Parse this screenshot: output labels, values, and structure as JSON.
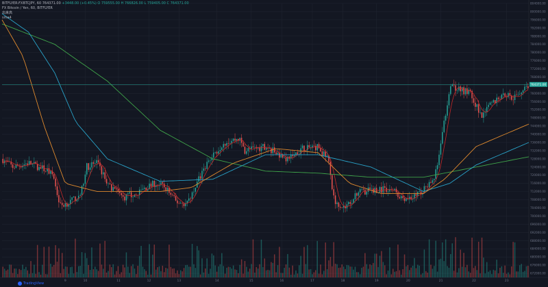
{
  "header": {
    "symbol_line": "BITFLYER:FXBTCJPY, 60",
    "price": "764371.00",
    "change": "+3448.00 (+0.45%)",
    "ohlc": "O 759555.00  H 766826.00  L 759405.00  C 764371.00",
    "subtitle": "FX Bitcoin / Yen, 60, BITFLYER",
    "indicator_1": "出来高",
    "indicator_2": "sma4"
  },
  "logo": {
    "text": "TradingView"
  },
  "price_label": "764371.00",
  "colors": {
    "background": "#131722",
    "grid": "#1f2430",
    "up": "#26a69a",
    "down": "#ef5350",
    "ma_fast": "#c62828",
    "ma_mid": "#e08a2e",
    "ma_slow": "#29a3c9",
    "ma_long": "#3fa44a",
    "price_line": "#26a69a",
    "axis_text": "#6c7284"
  },
  "chart_data": {
    "type": "candlestick",
    "ylim": [
      670000,
      804000
    ],
    "y_ticks": [
      "804000.00",
      "800000.00",
      "796000.00",
      "792000.00",
      "788000.00",
      "784000.00",
      "780000.00",
      "776000.00",
      "772000.00",
      "768000.00",
      "764000.00",
      "760000.00",
      "756000.00",
      "752000.00",
      "748000.00",
      "744000.00",
      "740000.00",
      "736000.00",
      "732000.00",
      "728000.00",
      "724000.00",
      "720000.00",
      "716000.00",
      "712000.00",
      "708000.00",
      "704000.00",
      "700000.00",
      "696000.00",
      "692000.00",
      "688000.00",
      "684000.00",
      "680000.00",
      "676000.00",
      "672000.00"
    ],
    "x_ticks": [
      {
        "label": "9",
        "pos": 0.12
      },
      {
        "label": "10",
        "pos": 0.158
      },
      {
        "label": "11",
        "pos": 0.221
      },
      {
        "label": "12",
        "pos": 0.279
      },
      {
        "label": "13",
        "pos": 0.336
      },
      {
        "label": "14",
        "pos": 0.408
      },
      {
        "label": "15",
        "pos": 0.473
      },
      {
        "label": "16",
        "pos": 0.531
      },
      {
        "label": "17",
        "pos": 0.589
      },
      {
        "label": "18",
        "pos": 0.647
      },
      {
        "label": "19",
        "pos": 0.711
      },
      {
        "label": "20",
        "pos": 0.771
      },
      {
        "label": "21",
        "pos": 0.833
      },
      {
        "label": "22",
        "pos": 0.896
      },
      {
        "label": "23",
        "pos": 0.958
      }
    ],
    "close_keypoints": [
      [
        0,
        728000
      ],
      [
        0.02,
        724000
      ],
      [
        0.05,
        726000
      ],
      [
        0.09,
        722000
      ],
      [
        0.1,
        716000
      ],
      [
        0.11,
        705000
      ],
      [
        0.13,
        707000
      ],
      [
        0.15,
        711000
      ],
      [
        0.16,
        724000
      ],
      [
        0.18,
        726000
      ],
      [
        0.2,
        716000
      ],
      [
        0.23,
        709000
      ],
      [
        0.26,
        712000
      ],
      [
        0.29,
        716000
      ],
      [
        0.31,
        714000
      ],
      [
        0.33,
        707000
      ],
      [
        0.35,
        706000
      ],
      [
        0.37,
        716000
      ],
      [
        0.39,
        726000
      ],
      [
        0.42,
        736000
      ],
      [
        0.45,
        738000
      ],
      [
        0.46,
        732000
      ],
      [
        0.5,
        734000
      ],
      [
        0.54,
        728000
      ],
      [
        0.57,
        733000
      ],
      [
        0.6,
        734000
      ],
      [
        0.62,
        727000
      ],
      [
        0.63,
        708000
      ],
      [
        0.65,
        704000
      ],
      [
        0.68,
        712000
      ],
      [
        0.71,
        713000
      ],
      [
        0.74,
        713000
      ],
      [
        0.76,
        709000
      ],
      [
        0.78,
        709000
      ],
      [
        0.8,
        713000
      ],
      [
        0.82,
        717000
      ],
      [
        0.835,
        738000
      ],
      [
        0.85,
        764000
      ],
      [
        0.87,
        762000
      ],
      [
        0.89,
        760000
      ],
      [
        0.91,
        748000
      ],
      [
        0.93,
        755000
      ],
      [
        0.95,
        760000
      ],
      [
        0.97,
        758000
      ],
      [
        1,
        764371
      ]
    ],
    "volume_max": 60,
    "moving_averages": [
      {
        "color_key": "ma_long",
        "points": [
          [
            0,
            794000
          ],
          [
            0.1,
            784000
          ],
          [
            0.2,
            766000
          ],
          [
            0.3,
            742000
          ],
          [
            0.4,
            728000
          ],
          [
            0.5,
            722000
          ],
          [
            0.6,
            721000
          ],
          [
            0.7,
            719000
          ],
          [
            0.8,
            719000
          ],
          [
            0.9,
            724000
          ],
          [
            1,
            729000
          ]
        ]
      },
      {
        "color_key": "ma_slow",
        "points": [
          [
            0,
            799000
          ],
          [
            0.05,
            790000
          ],
          [
            0.1,
            770000
          ],
          [
            0.14,
            746000
          ],
          [
            0.2,
            728000
          ],
          [
            0.3,
            717000
          ],
          [
            0.4,
            718000
          ],
          [
            0.5,
            730000
          ],
          [
            0.6,
            730000
          ],
          [
            0.7,
            724000
          ],
          [
            0.8,
            712000
          ],
          [
            0.85,
            716000
          ],
          [
            0.9,
            725000
          ],
          [
            1,
            736000
          ]
        ]
      },
      {
        "color_key": "ma_mid",
        "points": [
          [
            0,
            796000
          ],
          [
            0.04,
            778000
          ],
          [
            0.08,
            744000
          ],
          [
            0.12,
            716000
          ],
          [
            0.18,
            712000
          ],
          [
            0.3,
            712000
          ],
          [
            0.36,
            714000
          ],
          [
            0.44,
            726000
          ],
          [
            0.52,
            733000
          ],
          [
            0.6,
            731000
          ],
          [
            0.66,
            716000
          ],
          [
            0.72,
            711000
          ],
          [
            0.8,
            711000
          ],
          [
            0.84,
            718000
          ],
          [
            0.9,
            734000
          ],
          [
            1,
            745000
          ]
        ]
      }
    ]
  }
}
